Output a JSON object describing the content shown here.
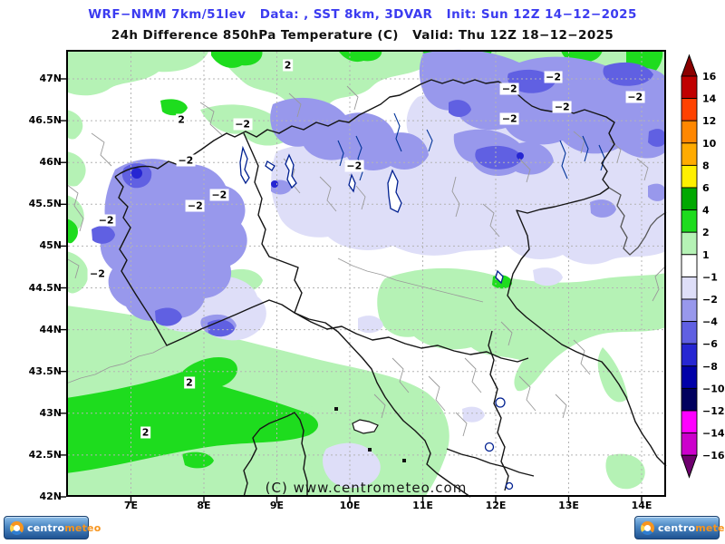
{
  "header": {
    "model_line": "WRF−NMM 7km/51lev   Data: , SST 8km, 3DVAR   Init: Sun 12Z 14−12−2025",
    "valid_line": "24h Difference 850hPa Temperature (C)   Valid: Thu 12Z 18−12−2025"
  },
  "map": {
    "watermark": "(C) www.centrometeo.com",
    "lat_ticks": [
      "47N",
      "46.5N",
      "46N",
      "45.5N",
      "45N",
      "44.5N",
      "44N",
      "43.5N",
      "43N",
      "42.5N",
      "42N"
    ],
    "lat_values": [
      47,
      46.5,
      46,
      45.5,
      45,
      44.5,
      44,
      43.5,
      43,
      42.5,
      42
    ],
    "lon_ticks": [
      "7E",
      "8E",
      "9E",
      "10E",
      "11E",
      "12E",
      "13E",
      "14E"
    ],
    "lon_values": [
      7,
      8,
      9,
      10,
      11,
      12,
      13,
      14
    ],
    "contour_labels": [
      {
        "text": "2",
        "lon": 9.15,
        "lat": 47.16
      },
      {
        "text": "2",
        "lon": 7.69,
        "lat": 46.51
      },
      {
        "text": "−2",
        "lon": 8.53,
        "lat": 46.46
      },
      {
        "text": "−2",
        "lon": 7.75,
        "lat": 46.02
      },
      {
        "text": "−2",
        "lon": 10.06,
        "lat": 45.96
      },
      {
        "text": "−2",
        "lon": 8.21,
        "lat": 45.61
      },
      {
        "text": "−2",
        "lon": 7.88,
        "lat": 45.48
      },
      {
        "text": "−2",
        "lon": 6.66,
        "lat": 45.31
      },
      {
        "text": "−2",
        "lon": 6.54,
        "lat": 44.67
      },
      {
        "text": "−2",
        "lon": 12.79,
        "lat": 47.02
      },
      {
        "text": "−2",
        "lon": 12.19,
        "lat": 46.88
      },
      {
        "text": "−2",
        "lon": 13.91,
        "lat": 46.78
      },
      {
        "text": "−2",
        "lon": 12.91,
        "lat": 46.66
      },
      {
        "text": "−2",
        "lon": 12.19,
        "lat": 46.52
      },
      {
        "text": "2",
        "lon": 7.8,
        "lat": 43.37
      },
      {
        "text": "2",
        "lon": 7.2,
        "lat": 42.77
      }
    ],
    "field_colors": {
      "plus_1_to_2": "#b5f2b5",
      "plus_2_to_4": "#1edc1e",
      "minus_1_to_2": "#dedef8",
      "minus_2_to_4": "#9898ec",
      "minus_4_to_6": "#6060e2",
      "minus_6_to_8": "#2626d2"
    }
  },
  "colorbar": {
    "boundary_labels": [
      "16",
      "14",
      "12",
      "10",
      "8",
      "6",
      "4",
      "2",
      "1",
      "−1",
      "−2",
      "−4",
      "−6",
      "−8",
      "−10",
      "−12",
      "−14",
      "−16"
    ],
    "boundary_values": [
      16,
      14,
      12,
      10,
      8,
      6,
      4,
      2,
      1,
      -1,
      -2,
      -4,
      -6,
      -8,
      -10,
      -12,
      -14,
      -16
    ],
    "segment_colors_top_to_bottom": [
      "#c00000",
      "#ff4200",
      "#ff8700",
      "#ffab00",
      "#fff000",
      "#00a800",
      "#1edc1e",
      "#b5f2b5",
      "#ffffff",
      "#dedef8",
      "#9898ec",
      "#6060e2",
      "#2626d2",
      "#0000a8",
      "#00005e",
      "#ff00ff",
      "#cc00cc"
    ],
    "above_max_color": "#8b0000",
    "below_min_color": "#6e006e"
  },
  "logos": {
    "brand_first": "centro",
    "brand_second": "meteo"
  },
  "accent_colors": {
    "title_blue": "#3b3bf0",
    "logo_blue": "#1e5292",
    "logo_orange": "#f7941d"
  }
}
